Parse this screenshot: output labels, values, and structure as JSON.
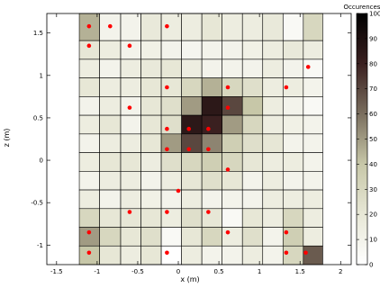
{
  "chart_data": {
    "type": "heatmap",
    "xlabel": "x (m)",
    "ylabel": "z (m)",
    "xlim": [
      -1.62,
      2.13
    ],
    "ylim": [
      -1.23,
      1.73
    ],
    "grid": false,
    "x_ticks": [
      -1.5,
      -1,
      -0.5,
      0,
      0.5,
      1,
      1.5,
      2
    ],
    "x_tick_labels": [
      "-1.5",
      "-1",
      "-0.5",
      "0",
      "0.5",
      "1",
      "1.5",
      "2"
    ],
    "y_ticks": [
      -1,
      -0.5,
      0,
      0.5,
      1,
      1.5
    ],
    "y_tick_labels": [
      "-1",
      "-0.5",
      "0",
      "0.5",
      "1",
      "1.5"
    ],
    "colorbar": {
      "label": "Occurences",
      "range": [
        0,
        100
      ],
      "ticks": [
        0,
        10,
        20,
        30,
        40,
        50,
        60,
        70,
        80,
        90,
        100
      ],
      "tick_labels": [
        "0",
        "10",
        "20",
        "30",
        "40",
        "50",
        "60",
        "70",
        "80",
        "90",
        "100"
      ],
      "colormap_stops": [
        {
          "v": 0,
          "color": "#ffffff"
        },
        {
          "v": 20,
          "color": "#e7e7d6"
        },
        {
          "v": 40,
          "color": "#c7c7a8"
        },
        {
          "v": 60,
          "color": "#7a6e5e"
        },
        {
          "v": 80,
          "color": "#3a2020"
        },
        {
          "v": 100,
          "color": "#000000"
        }
      ]
    },
    "grid_cells": {
      "x_edges": [
        -1.22,
        -0.97,
        -0.71,
        -0.46,
        -0.21,
        0.04,
        0.29,
        0.54,
        0.79,
        1.04,
        1.29,
        1.54,
        1.78
      ],
      "z_edges": [
        -1.23,
        -1.01,
        -0.79,
        -0.57,
        -0.35,
        -0.13,
        0.09,
        0.31,
        0.53,
        0.75,
        0.97,
        1.19,
        1.41,
        1.73
      ],
      "values_top_to_bottom": [
        [
          45,
          10,
          10,
          18,
          15,
          15,
          20,
          15,
          15,
          18,
          5,
          30
        ],
        [
          20,
          15,
          10,
          12,
          10,
          8,
          10,
          10,
          12,
          15,
          18,
          15
        ],
        [
          15,
          10,
          15,
          18,
          20,
          15,
          10,
          10,
          10,
          15,
          10,
          5
        ],
        [
          20,
          15,
          15,
          20,
          20,
          30,
          45,
          30,
          25,
          15,
          15,
          10
        ],
        [
          10,
          15,
          10,
          20,
          25,
          50,
          85,
          70,
          40,
          15,
          10,
          5
        ],
        [
          15,
          20,
          10,
          20,
          25,
          85,
          80,
          50,
          30,
          15,
          12,
          10
        ],
        [
          10,
          15,
          15,
          20,
          50,
          70,
          55,
          35,
          25,
          20,
          10,
          10
        ],
        [
          15,
          20,
          20,
          15,
          25,
          30,
          35,
          30,
          20,
          15,
          15,
          10
        ],
        [
          10,
          15,
          15,
          10,
          15,
          20,
          25,
          20,
          10,
          15,
          10,
          10
        ],
        [
          15,
          10,
          15,
          12,
          10,
          15,
          10,
          10,
          10,
          15,
          15,
          15
        ],
        [
          30,
          20,
          20,
          20,
          15,
          25,
          20,
          5,
          20,
          15,
          30,
          15
        ],
        [
          50,
          30,
          20,
          25,
          5,
          20,
          30,
          15,
          25,
          10,
          35,
          15
        ],
        [
          40,
          20,
          15,
          20,
          0,
          15,
          10,
          10,
          15,
          10,
          30,
          65
        ]
      ]
    },
    "points": [
      {
        "x": -1.1,
        "y": 1.58
      },
      {
        "x": -0.84,
        "y": 1.58
      },
      {
        "x": -0.14,
        "y": 1.58
      },
      {
        "x": -1.1,
        "y": 1.35
      },
      {
        "x": -0.6,
        "y": 1.35
      },
      {
        "x": 1.6,
        "y": 1.1
      },
      {
        "x": -0.14,
        "y": 0.86
      },
      {
        "x": 0.61,
        "y": 0.86
      },
      {
        "x": 1.33,
        "y": 0.86
      },
      {
        "x": -0.6,
        "y": 0.62
      },
      {
        "x": 0.61,
        "y": 0.62
      },
      {
        "x": -0.14,
        "y": 0.37
      },
      {
        "x": 0.13,
        "y": 0.37
      },
      {
        "x": 0.37,
        "y": 0.37
      },
      {
        "x": -0.14,
        "y": 0.13
      },
      {
        "x": 0.13,
        "y": 0.13
      },
      {
        "x": 0.37,
        "y": 0.13
      },
      {
        "x": 0.61,
        "y": -0.11
      },
      {
        "x": 0.0,
        "y": -0.36
      },
      {
        "x": -0.6,
        "y": -0.61
      },
      {
        "x": -0.14,
        "y": -0.61
      },
      {
        "x": 0.37,
        "y": -0.61
      },
      {
        "x": -1.1,
        "y": -0.85
      },
      {
        "x": 0.61,
        "y": -0.85
      },
      {
        "x": 1.33,
        "y": -0.85
      },
      {
        "x": -1.1,
        "y": -1.09
      },
      {
        "x": -0.14,
        "y": -1.09
      },
      {
        "x": 1.33,
        "y": -1.09
      },
      {
        "x": 1.57,
        "y": -1.09
      }
    ],
    "point_color": "#ff0000"
  }
}
